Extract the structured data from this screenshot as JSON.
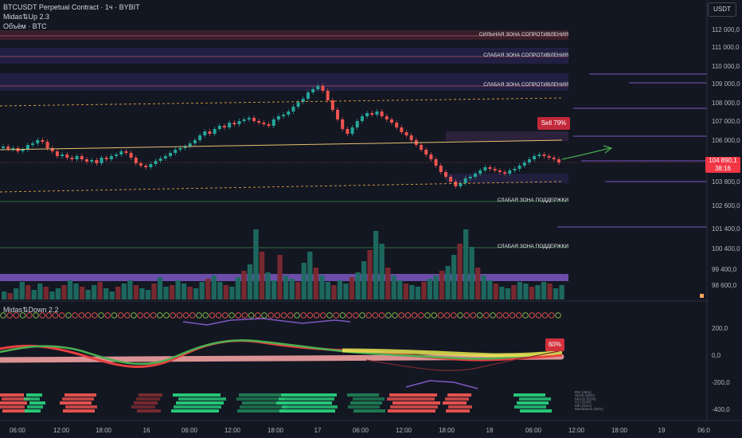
{
  "legend": {
    "symbol": "BTCUSDT Perpetual Contract · 1ч · BYBIT",
    "indicator_up": "Midas⇅Up 2.3",
    "volume": "Объём · BTC",
    "indicator_down": "Midas⇅Down 2.2"
  },
  "currency_button": "USDT",
  "price_axis": [
    "112 000,0",
    "111 000,0",
    "110 000,0",
    "109 000,0",
    "108 000,0",
    "107 000,0",
    "106 000,0",
    "103 800,0",
    "102 600,0",
    "101 400,0",
    "100 400,0",
    "99 400,0",
    "98 600,0"
  ],
  "current_price": {
    "value": "104 890,1",
    "countdown": "38:16"
  },
  "zones": [
    {
      "label": "СИЛЬНАЯ ЗОНА СОПРОТИВЛЕНИЯ",
      "price": 111700
    },
    {
      "label": "СЛАБАЯ ЗОНА СОПРОТИВЛЕНИЯ",
      "price": 110450
    },
    {
      "label": "СЛАБАЯ ЗОНА СОПРОТИВЛЕНИЯ",
      "price": 108900
    },
    {
      "label": "СЛАБАЯ ЗОНА ПОДДЕРЖКИ",
      "price": 102900
    },
    {
      "label": "СЛАБАЯ ЗОНА ПОДДЕРЖКИ",
      "price": 100650
    }
  ],
  "signal_label": "Sell 79%",
  "oscillator_label": "60%",
  "oscillator_axis": [
    "200,0",
    "0,0",
    "-200,0",
    "-400,0"
  ],
  "heatmap_labels": [
    "RSI (45%)",
    "Stoch (40%)",
    "MACD (52%)",
    "CCI (11%)",
    "MFI (51%)",
    "Momentum (52%)"
  ],
  "time_axis": [
    "06:00",
    "12:00",
    "18:00",
    "16",
    "06:00",
    "12:00",
    "18:00",
    "17",
    "06:00",
    "12:00",
    "18:00",
    "18",
    "06:00",
    "12:00",
    "18:00",
    "19",
    "06:0"
  ],
  "colors": {
    "up": "#26a69a",
    "down": "#ef5350",
    "background": "#131722",
    "purple": "#7e57c2"
  }
}
